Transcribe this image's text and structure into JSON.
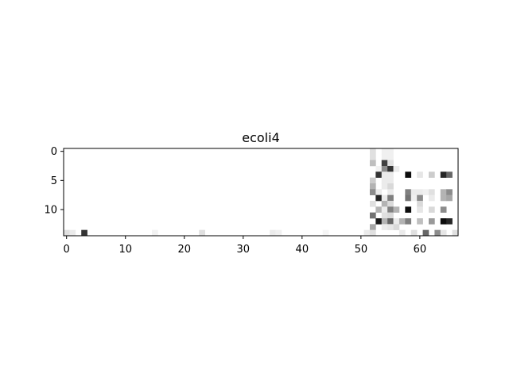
{
  "chart_data": {
    "type": "heatmap",
    "title": "ecoli4",
    "xlabel": "",
    "ylabel": "",
    "colormap": "gray_r",
    "vmin": 0,
    "vmax": 1,
    "n_cols": 67,
    "n_rows": 15,
    "xlim": [
      -0.5,
      66.5
    ],
    "ylim": [
      14.5,
      -0.5
    ],
    "x_ticks": [
      0,
      10,
      20,
      30,
      40,
      50,
      60
    ],
    "y_ticks": [
      0,
      5,
      10
    ],
    "grid": false,
    "background_value": 0,
    "cells": [
      [
        52,
        0,
        0.12
      ],
      [
        54,
        0,
        0.06
      ],
      [
        55,
        0,
        0.06
      ],
      [
        52,
        1,
        0.12
      ],
      [
        54,
        1,
        0.06
      ],
      [
        55,
        1,
        0.06
      ],
      [
        52,
        2,
        0.25
      ],
      [
        54,
        2,
        0.75
      ],
      [
        55,
        2,
        0.12
      ],
      [
        53,
        3,
        0.05
      ],
      [
        54,
        3,
        0.45
      ],
      [
        55,
        3,
        0.8
      ],
      [
        56,
        3,
        0.08
      ],
      [
        53,
        4,
        0.8
      ],
      [
        54,
        4,
        0.08
      ],
      [
        55,
        4,
        0.08
      ],
      [
        58,
        4,
        0.95
      ],
      [
        60,
        4,
        0.1
      ],
      [
        62,
        4,
        0.2
      ],
      [
        64,
        4,
        0.85
      ],
      [
        65,
        4,
        0.6
      ],
      [
        52,
        5,
        0.2
      ],
      [
        54,
        5,
        0.08
      ],
      [
        55,
        5,
        0.08
      ],
      [
        52,
        6,
        0.3
      ],
      [
        54,
        6,
        0.08
      ],
      [
        55,
        6,
        0.15
      ],
      [
        52,
        7,
        0.45
      ],
      [
        53,
        7,
        0.08
      ],
      [
        55,
        7,
        0.08
      ],
      [
        58,
        7,
        0.5
      ],
      [
        59,
        7,
        0.08
      ],
      [
        60,
        7,
        0.08
      ],
      [
        61,
        7,
        0.06
      ],
      [
        62,
        7,
        0.12
      ],
      [
        64,
        7,
        0.3
      ],
      [
        65,
        7,
        0.45
      ],
      [
        53,
        8,
        0.85
      ],
      [
        54,
        8,
        0.08
      ],
      [
        55,
        8,
        0.5
      ],
      [
        58,
        8,
        0.55
      ],
      [
        59,
        8,
        0.06
      ],
      [
        60,
        8,
        0.45
      ],
      [
        62,
        8,
        0.08
      ],
      [
        64,
        8,
        0.3
      ],
      [
        65,
        8,
        0.35
      ],
      [
        52,
        9,
        0.12
      ],
      [
        54,
        9,
        0.3
      ],
      [
        55,
        9,
        0.15
      ],
      [
        60,
        9,
        0.15
      ],
      [
        53,
        10,
        0.3
      ],
      [
        54,
        10,
        0.08
      ],
      [
        55,
        10,
        0.5
      ],
      [
        56,
        10,
        0.3
      ],
      [
        58,
        10,
        0.95
      ],
      [
        60,
        10,
        0.1
      ],
      [
        62,
        10,
        0.15
      ],
      [
        64,
        10,
        0.45
      ],
      [
        52,
        11,
        0.55
      ],
      [
        54,
        11,
        0.12
      ],
      [
        55,
        11,
        0.15
      ],
      [
        53,
        12,
        0.9
      ],
      [
        54,
        12,
        0.3
      ],
      [
        55,
        12,
        0.6
      ],
      [
        56,
        12,
        0.08
      ],
      [
        57,
        12,
        0.3
      ],
      [
        58,
        12,
        0.5
      ],
      [
        60,
        12,
        0.25
      ],
      [
        62,
        12,
        0.4
      ],
      [
        64,
        12,
        0.95
      ],
      [
        65,
        12,
        0.85
      ],
      [
        52,
        13,
        0.35
      ],
      [
        54,
        13,
        0.08
      ],
      [
        55,
        13,
        0.1
      ],
      [
        56,
        13,
        0.15
      ],
      [
        0,
        14,
        0.12
      ],
      [
        1,
        14,
        0.08
      ],
      [
        3,
        14,
        0.8
      ],
      [
        15,
        14,
        0.05
      ],
      [
        23,
        14,
        0.12
      ],
      [
        35,
        14,
        0.08
      ],
      [
        36,
        14,
        0.06
      ],
      [
        44,
        14,
        0.04
      ],
      [
        51,
        14,
        0.08
      ],
      [
        52,
        14,
        0.12
      ],
      [
        57,
        14,
        0.08
      ],
      [
        59,
        14,
        0.12
      ],
      [
        61,
        14,
        0.6
      ],
      [
        63,
        14,
        0.45
      ],
      [
        64,
        14,
        0.1
      ],
      [
        66,
        14,
        0.12
      ]
    ]
  }
}
